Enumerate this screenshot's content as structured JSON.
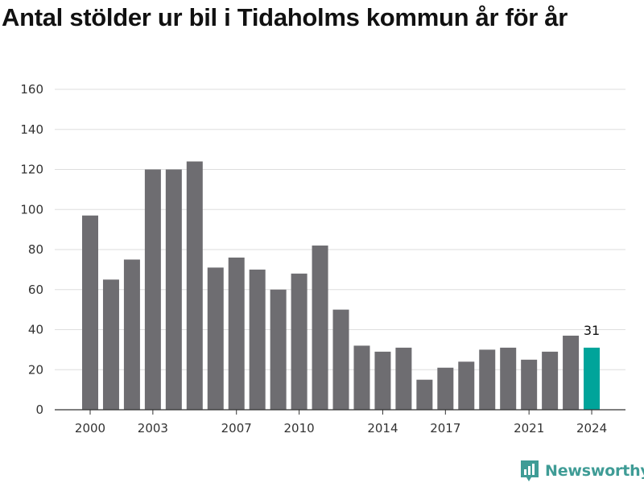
{
  "chart_data": {
    "type": "bar",
    "title": "Antal stölder ur bil i Tidaholms kommun år för år",
    "xlabel": "",
    "ylabel": "",
    "x": [
      2000,
      2001,
      2002,
      2003,
      2004,
      2005,
      2006,
      2007,
      2008,
      2009,
      2010,
      2011,
      2012,
      2013,
      2014,
      2015,
      2016,
      2017,
      2018,
      2019,
      2020,
      2021,
      2022,
      2023,
      2024
    ],
    "values": [
      97,
      65,
      75,
      120,
      120,
      124,
      71,
      76,
      70,
      60,
      68,
      82,
      50,
      32,
      29,
      31,
      15,
      21,
      24,
      30,
      31,
      25,
      29,
      37,
      31
    ],
    "x_ticks": [
      2000,
      2003,
      2007,
      2010,
      2014,
      2017,
      2021,
      2024
    ],
    "y_ticks": [
      0,
      20,
      40,
      60,
      80,
      100,
      120,
      140,
      160
    ],
    "ylim": [
      0,
      160
    ],
    "grid": "horizontal",
    "bar_color": "#6e6d71",
    "highlight_color": "#00a49a",
    "highlight_year": 2024,
    "highlight_label": "31"
  },
  "branding": {
    "name": "Newsworthy",
    "color": "#3f9c96"
  }
}
